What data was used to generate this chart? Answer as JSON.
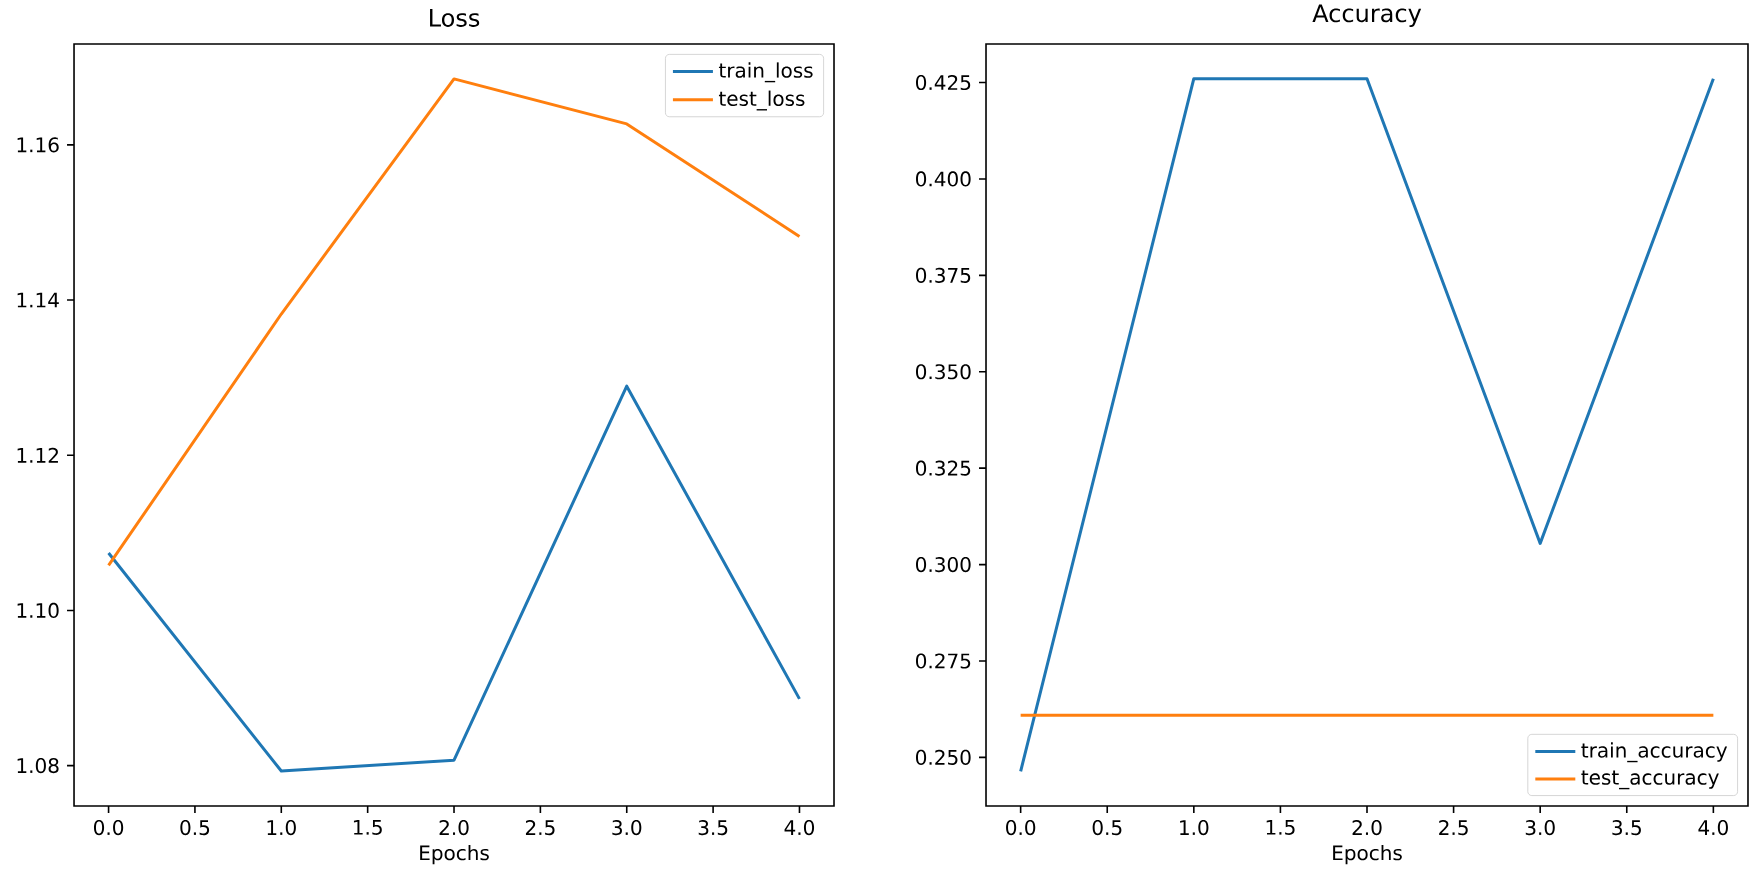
{
  "chart_data": [
    {
      "type": "line",
      "title": "Loss",
      "xlabel": "Epochs",
      "x": [
        0,
        1,
        2,
        3,
        4
      ],
      "series": [
        {
          "name": "train_loss",
          "color": "#1f77b4",
          "values": [
            1.1074,
            1.0793,
            1.0807,
            1.1289,
            1.0886
          ]
        },
        {
          "name": "test_loss",
          "color": "#ff7f0e",
          "values": [
            1.1058,
            1.1382,
            1.1685,
            1.1627,
            1.1482
          ]
        }
      ],
      "xlim": [
        -0.2,
        4.2
      ],
      "ylim": [
        1.0748,
        1.173
      ],
      "xticks": [
        {
          "value": 0,
          "label": "0.0"
        },
        0.5,
        {
          "value": 1,
          "label": "1.0"
        },
        1.5,
        {
          "value": 2,
          "label": "2.0"
        },
        2.5,
        {
          "value": 3,
          "label": "3.0"
        },
        3.5,
        {
          "value": 4,
          "label": "4.0"
        }
      ],
      "yticks": [
        1.08,
        {
          "value": 1.1,
          "label": "1.10"
        },
        1.12,
        1.14,
        1.16
      ],
      "legend": "top right"
    },
    {
      "type": "line",
      "title": "Accuracy",
      "xlabel": "Epochs",
      "x": [
        0,
        1,
        2,
        3,
        4
      ],
      "series": [
        {
          "name": "train_accuracy",
          "color": "#1f77b4",
          "values": [
            0.2464,
            0.426,
            0.426,
            0.3055,
            0.426
          ]
        },
        {
          "name": "test_accuracy",
          "color": "#ff7f0e",
          "values": [
            0.2609,
            0.2609,
            0.2609,
            0.2609,
            0.2609
          ]
        }
      ],
      "xlim": [
        -0.2,
        4.2
      ],
      "ylim": [
        0.2374,
        0.435
      ],
      "xticks": [
        {
          "value": 0,
          "label": "0.0"
        },
        0.5,
        {
          "value": 1,
          "label": "1.0"
        },
        1.5,
        {
          "value": 2,
          "label": "2.0"
        },
        2.5,
        {
          "value": 3,
          "label": "3.0"
        },
        3.5,
        {
          "value": 4,
          "label": "4.0"
        }
      ],
      "yticks": [
        {
          "value": 0.25,
          "label": "0.250"
        },
        0.275,
        {
          "value": 0.3,
          "label": "0.300"
        },
        0.325,
        {
          "value": 0.35,
          "label": "0.350"
        },
        0.375,
        {
          "value": 0.4,
          "label": "0.400"
        },
        0.425
      ],
      "legend": "bottom right"
    }
  ]
}
